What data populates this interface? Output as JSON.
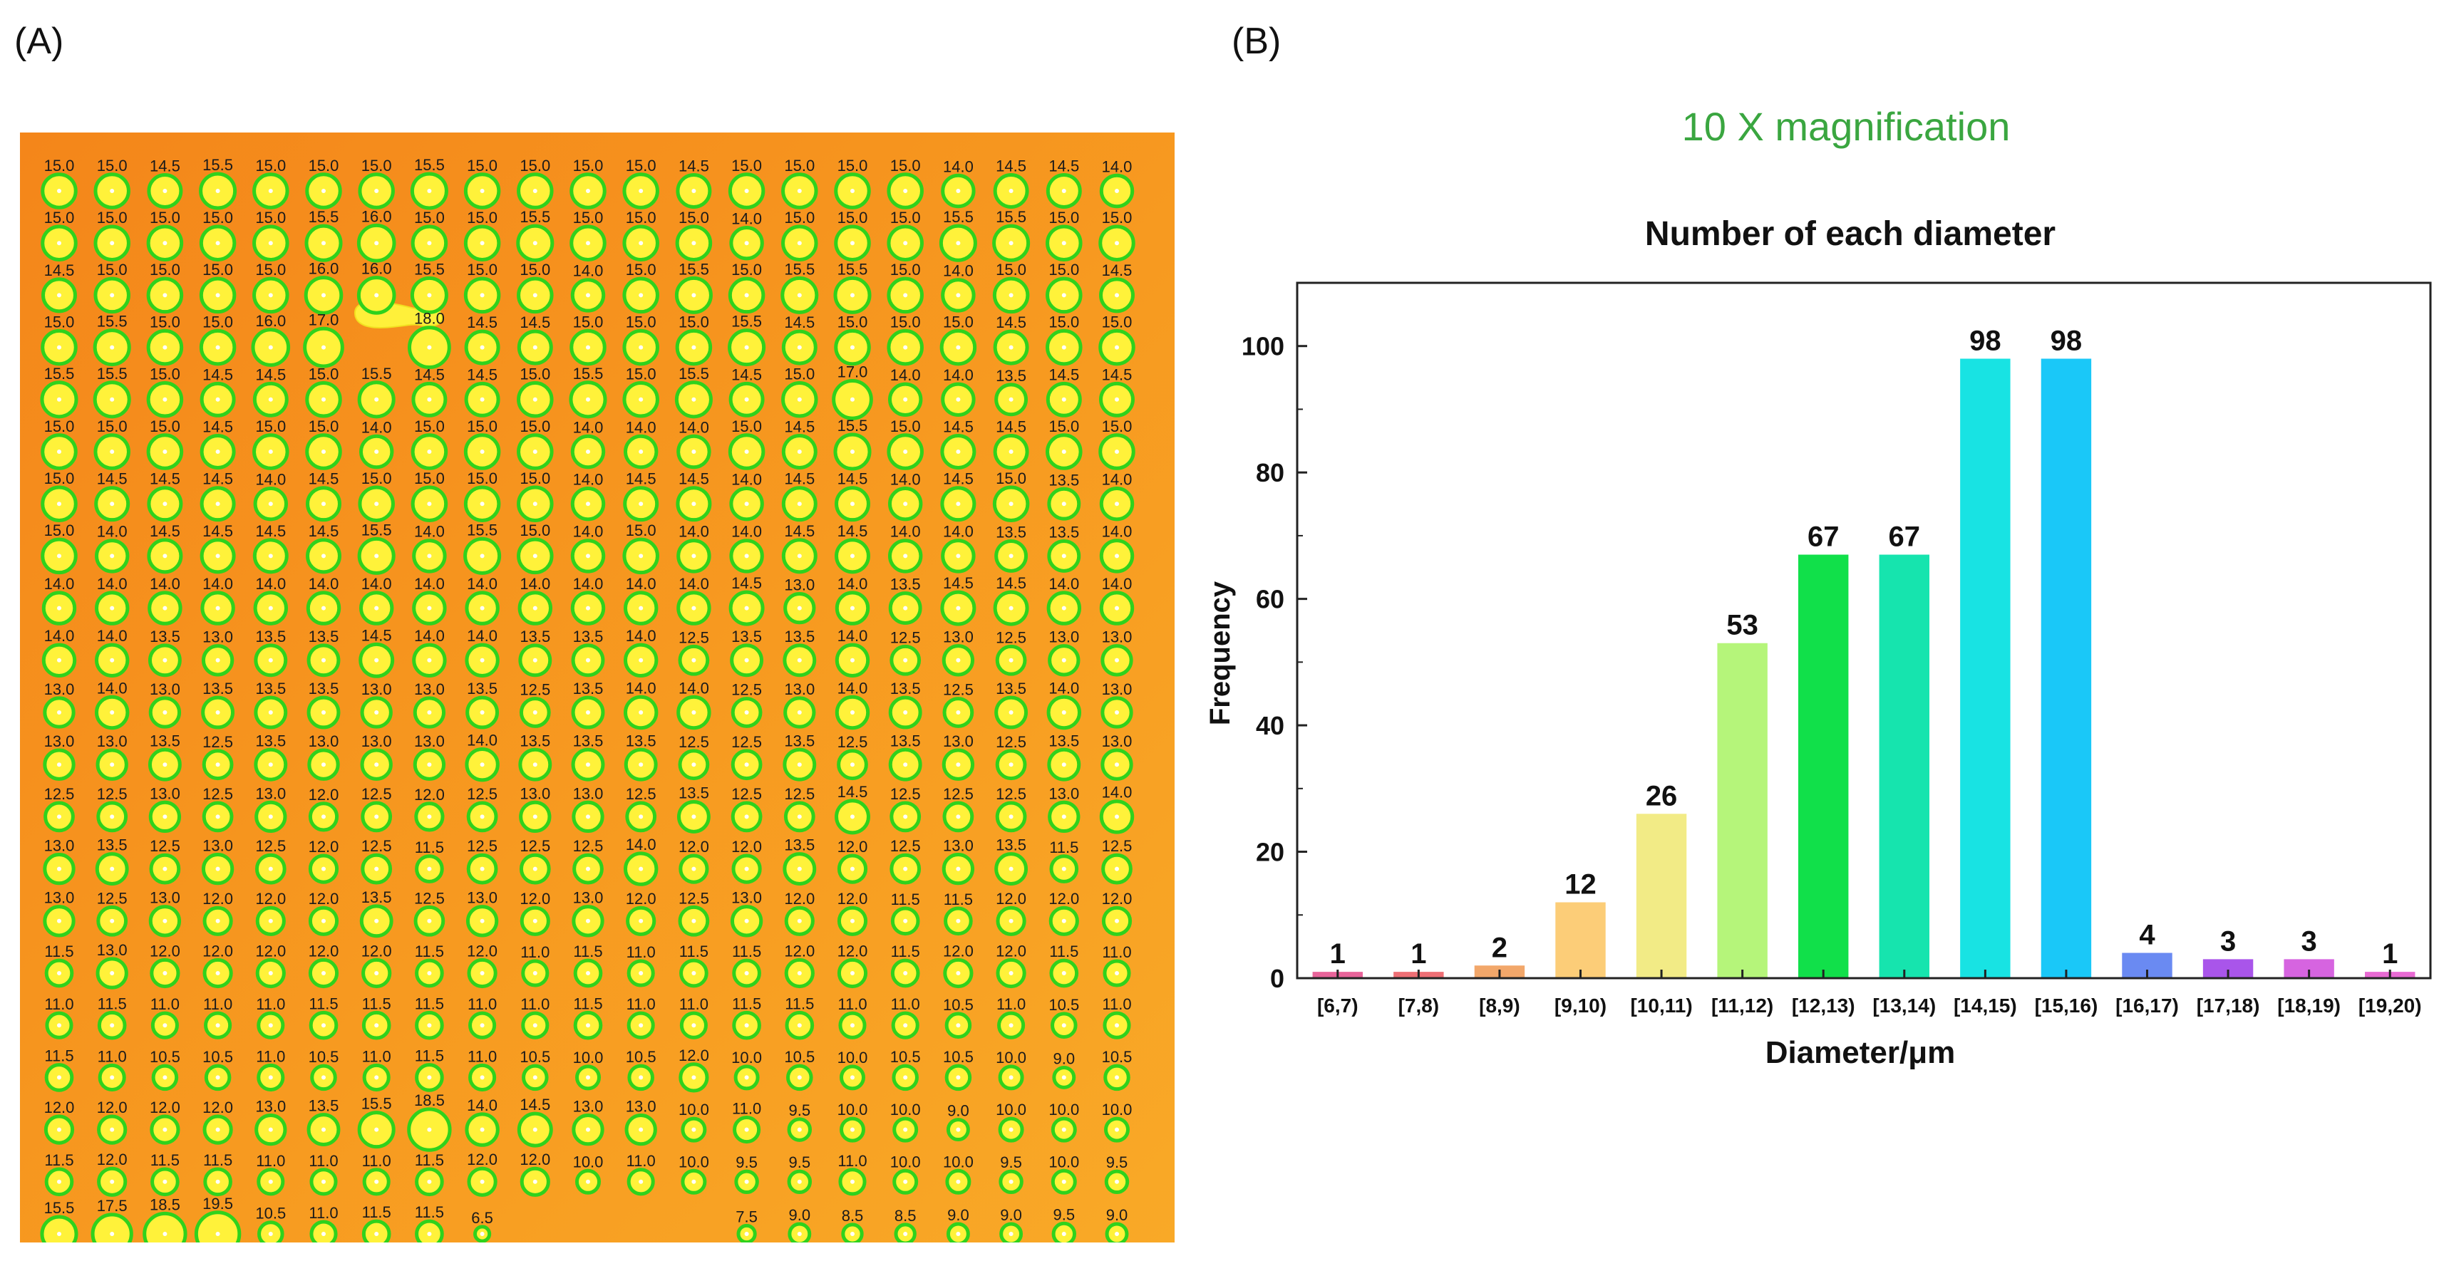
{
  "panel_labels": {
    "a": "(A)",
    "b": "(B)"
  },
  "chart_data": {
    "type": "bar",
    "title": "Number of each diameter",
    "annotation": "10 X magnification",
    "xlabel": "Diameter/μm",
    "ylabel": "Frequency",
    "ylim": [
      0,
      110
    ],
    "yticks": [
      0,
      20,
      40,
      60,
      80,
      100
    ],
    "categories": [
      "[6,7)",
      "[7,8)",
      "[8,9)",
      "[9,10)",
      "[10,11)",
      "[11,12)",
      "[12,13)",
      "[13,14)",
      "[14,15)",
      "[15,16)",
      "[16,17)",
      "[17,18)",
      "[18,19)",
      "[19,20)"
    ],
    "values": [
      1,
      1,
      2,
      12,
      26,
      53,
      67,
      67,
      98,
      98,
      4,
      3,
      3,
      1
    ],
    "colors": [
      "#e8649a",
      "#ee6f75",
      "#f2a76a",
      "#fccd78",
      "#f2eb86",
      "#b5f57a",
      "#11e04a",
      "#16e4ae",
      "#18e3e3",
      "#1ac8f8",
      "#6a8af2",
      "#a955ea",
      "#d664e0",
      "#e86ad3"
    ],
    "annotation_color": "#3aa640"
  },
  "microscope": {
    "rows": [
      [
        "15.0",
        "15.0",
        "14.5",
        "15.5",
        "15.0",
        "15.0",
        "15.0",
        "15.5",
        "15.0",
        "15.0",
        "15.0",
        "15.0",
        "14.5",
        "15.0",
        "15.0",
        "15.0",
        "15.0",
        "14.0",
        "14.5",
        "14.5",
        "14.0"
      ],
      [
        "15.0",
        "15.0",
        "15.0",
        "15.0",
        "15.0",
        "15.5",
        "16.0",
        "15.0",
        "15.0",
        "15.5",
        "15.0",
        "15.0",
        "15.0",
        "14.0",
        "15.0",
        "15.0",
        "15.0",
        "15.5",
        "15.5",
        "15.0",
        "15.0"
      ],
      [
        "14.5",
        "15.0",
        "15.0",
        "15.0",
        "15.0",
        "16.0",
        "16.0",
        "15.5",
        "15.0",
        "15.0",
        "14.0",
        "15.0",
        "15.5",
        "15.0",
        "15.5",
        "15.5",
        "15.0",
        "14.0",
        "15.0",
        "15.0",
        "14.5"
      ],
      [
        "15.0",
        "15.5",
        "15.0",
        "15.0",
        "16.0",
        "17.0",
        "",
        "18.0",
        "14.5",
        "14.5",
        "15.0",
        "15.0",
        "15.0",
        "15.5",
        "14.5",
        "15.0",
        "15.0",
        "15.0",
        "14.5",
        "15.0",
        "15.0"
      ],
      [
        "15.5",
        "15.5",
        "15.0",
        "14.5",
        "14.5",
        "15.0",
        "15.5",
        "14.5",
        "14.5",
        "15.0",
        "15.5",
        "15.0",
        "15.5",
        "14.5",
        "15.0",
        "17.0",
        "14.0",
        "14.0",
        "13.5",
        "14.5",
        "14.5"
      ],
      [
        "15.0",
        "15.0",
        "15.0",
        "14.5",
        "15.0",
        "15.0",
        "14.0",
        "15.0",
        "15.0",
        "15.0",
        "14.0",
        "14.0",
        "14.0",
        "15.0",
        "14.5",
        "15.5",
        "15.0",
        "14.5",
        "14.5",
        "15.0",
        "15.0"
      ],
      [
        "15.0",
        "14.5",
        "14.5",
        "14.5",
        "14.0",
        "14.5",
        "15.0",
        "15.0",
        "15.0",
        "15.0",
        "14.0",
        "14.5",
        "14.5",
        "14.0",
        "14.5",
        "14.5",
        "14.0",
        "14.5",
        "15.0",
        "13.5",
        "14.0"
      ],
      [
        "15.0",
        "14.0",
        "14.5",
        "14.5",
        "14.5",
        "14.5",
        "15.5",
        "14.0",
        "15.5",
        "15.0",
        "14.0",
        "15.0",
        "14.0",
        "14.0",
        "14.5",
        "14.5",
        "14.0",
        "14.0",
        "13.5",
        "13.5",
        "14.0"
      ],
      [
        "14.0",
        "14.0",
        "14.0",
        "14.0",
        "14.0",
        "14.0",
        "14.0",
        "14.0",
        "14.0",
        "14.0",
        "14.0",
        "14.0",
        "14.0",
        "14.5",
        "13.0",
        "14.0",
        "13.5",
        "14.5",
        "14.5",
        "14.0",
        "14.0"
      ],
      [
        "14.0",
        "14.0",
        "13.5",
        "13.0",
        "13.5",
        "13.5",
        "14.5",
        "14.0",
        "14.0",
        "13.5",
        "13.5",
        "14.0",
        "12.5",
        "13.5",
        "13.5",
        "14.0",
        "12.5",
        "13.0",
        "12.5",
        "13.0",
        "13.0"
      ],
      [
        "13.0",
        "14.0",
        "13.0",
        "13.5",
        "13.5",
        "13.5",
        "13.0",
        "13.0",
        "13.5",
        "12.5",
        "13.5",
        "14.0",
        "14.0",
        "12.5",
        "13.0",
        "14.0",
        "13.5",
        "12.5",
        "13.5",
        "14.0",
        "13.0"
      ],
      [
        "13.0",
        "13.0",
        "13.5",
        "12.5",
        "13.5",
        "13.0",
        "13.0",
        "13.0",
        "14.0",
        "13.5",
        "13.5",
        "13.5",
        "12.5",
        "12.5",
        "13.5",
        "12.5",
        "13.5",
        "13.0",
        "12.5",
        "13.5",
        "13.0"
      ],
      [
        "12.5",
        "12.5",
        "13.0",
        "12.5",
        "13.0",
        "12.0",
        "12.5",
        "12.0",
        "12.5",
        "13.0",
        "13.0",
        "12.5",
        "13.5",
        "12.5",
        "12.5",
        "14.5",
        "12.5",
        "12.5",
        "12.5",
        "13.0",
        "14.0"
      ],
      [
        "13.0",
        "13.5",
        "12.5",
        "13.0",
        "12.5",
        "12.0",
        "12.5",
        "11.5",
        "12.5",
        "12.5",
        "12.5",
        "14.0",
        "12.0",
        "12.0",
        "13.5",
        "12.0",
        "12.5",
        "13.0",
        "13.5",
        "11.5",
        "12.5"
      ],
      [
        "13.0",
        "12.5",
        "13.0",
        "12.0",
        "12.0",
        "12.0",
        "13.5",
        "12.5",
        "13.0",
        "12.0",
        "13.0",
        "12.0",
        "12.5",
        "13.0",
        "12.0",
        "12.0",
        "11.5",
        "11.5",
        "12.0",
        "12.0",
        "12.0"
      ],
      [
        "11.5",
        "13.0",
        "12.0",
        "12.0",
        "12.0",
        "12.0",
        "12.0",
        "11.5",
        "12.0",
        "11.0",
        "11.5",
        "11.0",
        "11.5",
        "11.5",
        "12.0",
        "12.0",
        "11.5",
        "12.0",
        "12.0",
        "11.5",
        "11.0"
      ],
      [
        "11.0",
        "11.5",
        "11.0",
        "11.0",
        "11.0",
        "11.5",
        "11.5",
        "11.5",
        "11.0",
        "11.0",
        "11.5",
        "11.0",
        "11.0",
        "11.5",
        "11.5",
        "11.0",
        "11.0",
        "10.5",
        "11.0",
        "10.5",
        "11.0"
      ],
      [
        "11.5",
        "11.0",
        "10.5",
        "10.5",
        "11.0",
        "10.5",
        "11.0",
        "11.5",
        "11.0",
        "10.5",
        "10.0",
        "10.5",
        "12.0",
        "10.0",
        "10.5",
        "10.0",
        "10.5",
        "10.5",
        "10.0",
        "9.0",
        "10.5"
      ],
      [
        "12.0",
        "12.0",
        "12.0",
        "12.0",
        "13.0",
        "13.5",
        "15.5",
        "18.5",
        "14.0",
        "14.5",
        "13.0",
        "13.0",
        "10.0",
        "11.0",
        "9.5",
        "10.0",
        "10.0",
        "9.0",
        "10.0",
        "10.0",
        "10.0"
      ],
      [
        "11.5",
        "12.0",
        "11.5",
        "11.5",
        "11.0",
        "11.0",
        "11.0",
        "11.5",
        "12.0",
        "12.0",
        "10.0",
        "11.0",
        "10.0",
        "9.5",
        "9.5",
        "11.0",
        "10.0",
        "10.0",
        "9.5",
        "10.0",
        "9.5"
      ],
      [
        "15.5",
        "17.5",
        "18.5",
        "19.5",
        "10.5",
        "11.0",
        "11.5",
        "11.5",
        "6.5",
        "",
        "",
        "",
        "",
        "7.5",
        "9.0",
        "8.5",
        "8.5",
        "9.0",
        "9.0",
        "9.5",
        "9.0"
      ]
    ]
  }
}
